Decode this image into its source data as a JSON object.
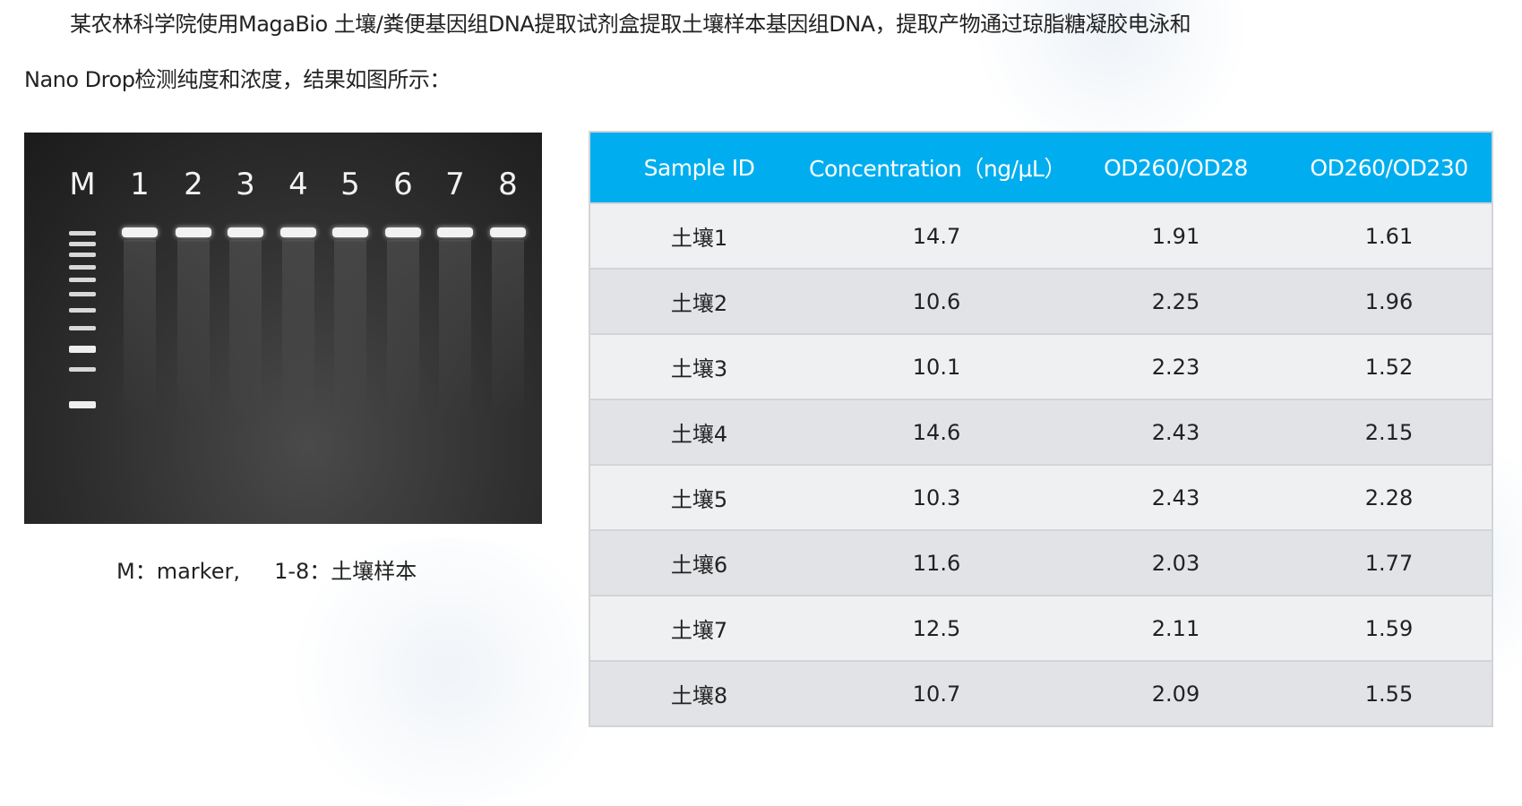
{
  "intro": {
    "line1": "某农林科学院使用MagaBio 土壤/粪便基因组DNA提取试剂盒提取土壤样本基因组DNA，提取产物通过琼脂糖凝胶电泳和",
    "line2": "Nano Drop检测纯度和浓度，结果如图所示："
  },
  "gel": {
    "lanes": [
      "M",
      "1",
      "2",
      "3",
      "4",
      "5",
      "6",
      "7",
      "8"
    ],
    "caption": "M：marker,     1-8：土壤样本"
  },
  "table": {
    "colors": {
      "header": "#00aeef",
      "row_odd": "#eff0f2",
      "row_even": "#e2e3e6"
    },
    "headers": [
      "Sample ID",
      "Concentration（ng/μL）",
      "OD260/OD28",
      "OD260/OD230"
    ],
    "rows": [
      [
        "土壤1",
        "14.7",
        "1.91",
        "1.61"
      ],
      [
        "土壤2",
        "10.6",
        "2.25",
        "1.96"
      ],
      [
        "土壤3",
        "10.1",
        "2.23",
        "1.52"
      ],
      [
        "土壤4",
        "14.6",
        "2.43",
        "2.15"
      ],
      [
        "土壤5",
        "10.3",
        "2.43",
        "2.28"
      ],
      [
        "土壤6",
        "11.6",
        "2.03",
        "1.77"
      ],
      [
        "土壤7",
        "12.5",
        "2.11",
        "1.59"
      ],
      [
        "土壤8",
        "10.7",
        "2.09",
        "1.55"
      ]
    ]
  }
}
